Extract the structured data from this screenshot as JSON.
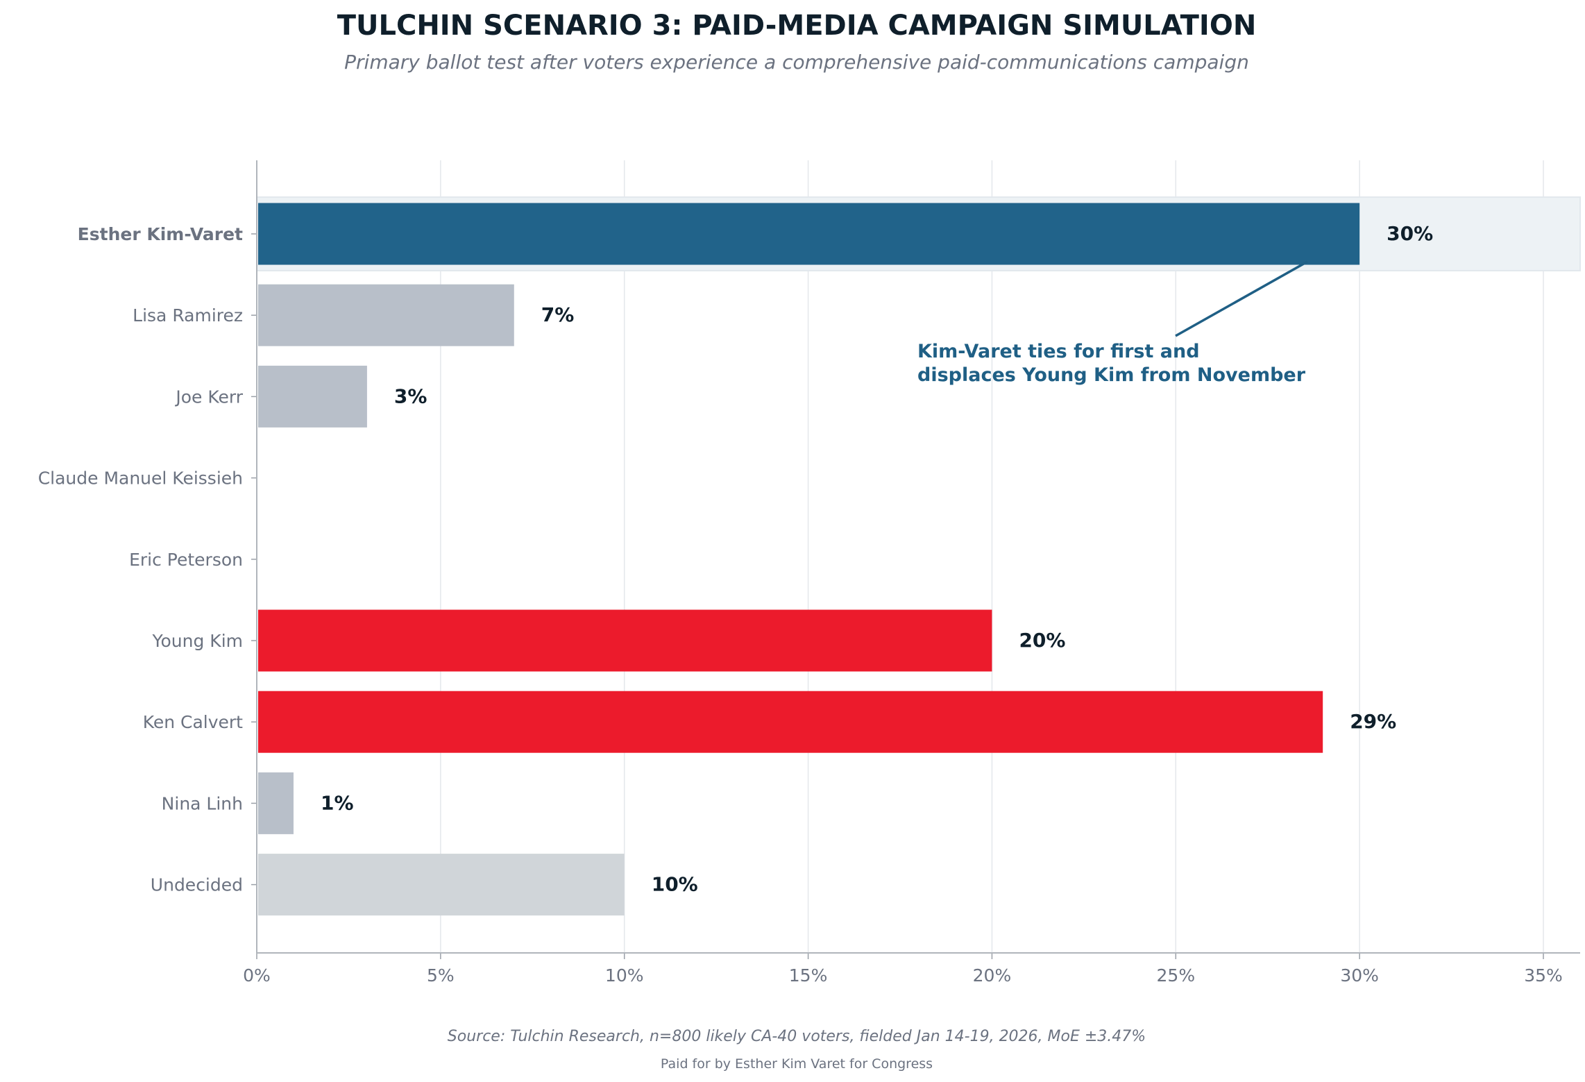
{
  "chart_data": {
    "type": "bar",
    "orientation": "horizontal",
    "title": "TULCHIN SCENARIO 3: PAID-MEDIA CAMPAIGN SIMULATION",
    "subtitle": "Primary ballot test after voters experience a comprehensive paid-communications campaign",
    "xlabel": "",
    "ylabel": "",
    "xlim": [
      0,
      36
    ],
    "xticks": [
      0,
      5,
      10,
      15,
      20,
      25,
      30,
      35
    ],
    "xtick_labels": [
      "0%",
      "5%",
      "10%",
      "15%",
      "20%",
      "25%",
      "30%",
      "35%"
    ],
    "grid": "vertical",
    "categories": [
      "Esther Kim-Varet",
      "Lisa Ramirez",
      "Joe Kerr",
      "Claude Manuel Keissieh",
      "Eric Peterson",
      "Young Kim",
      "Ken Calvert",
      "Nina Linh",
      "Undecided"
    ],
    "values": [
      30,
      7,
      3,
      0,
      0,
      20,
      29,
      1,
      10
    ],
    "value_labels": [
      "30%",
      "7%",
      "3%",
      "",
      "",
      "20%",
      "29%",
      "1%",
      "10%"
    ],
    "bar_colors": [
      "#21638a",
      "#b8bfc9",
      "#b8bfc9",
      "#b8bfc9",
      "#b8bfc9",
      "#ec1b2c",
      "#ec1b2c",
      "#b8bfc9",
      "#d0d5d9"
    ],
    "highlighted_category": "Esther Kim-Varet",
    "annotation": {
      "lines": [
        "Kim-Varet ties for first and",
        "displaces Young Kim from November"
      ],
      "color": "#1f5f85",
      "points_to": "Esther Kim-Varet"
    },
    "source": "Source: Tulchin Research, n=800 likely CA-40 voters, fielded Jan 14-19, 2026, MoE ±3.47%",
    "disclaimer": "Paid for by Esther Kim Varet for Congress"
  }
}
